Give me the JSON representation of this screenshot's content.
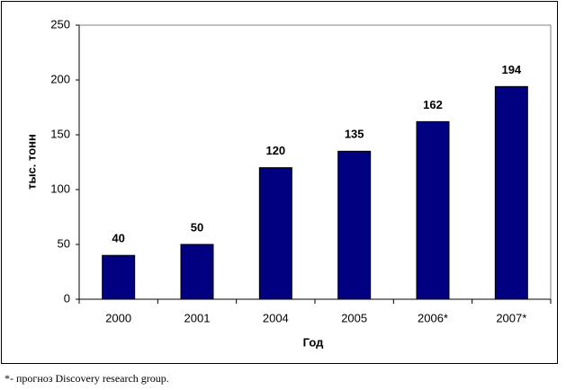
{
  "chart_data": {
    "type": "bar",
    "categories": [
      "2000",
      "2001",
      "2004",
      "2005",
      "2006*",
      "2007*"
    ],
    "values": [
      40,
      50,
      120,
      135,
      162,
      194
    ],
    "color": "#000080",
    "ylim": [
      0,
      250
    ],
    "yticks": [
      0,
      50,
      100,
      150,
      200,
      250
    ],
    "y_label": "тыс. тонн",
    "x_label": "Год",
    "footnote": "*- прогноз Discovery research group.",
    "grid": false
  }
}
